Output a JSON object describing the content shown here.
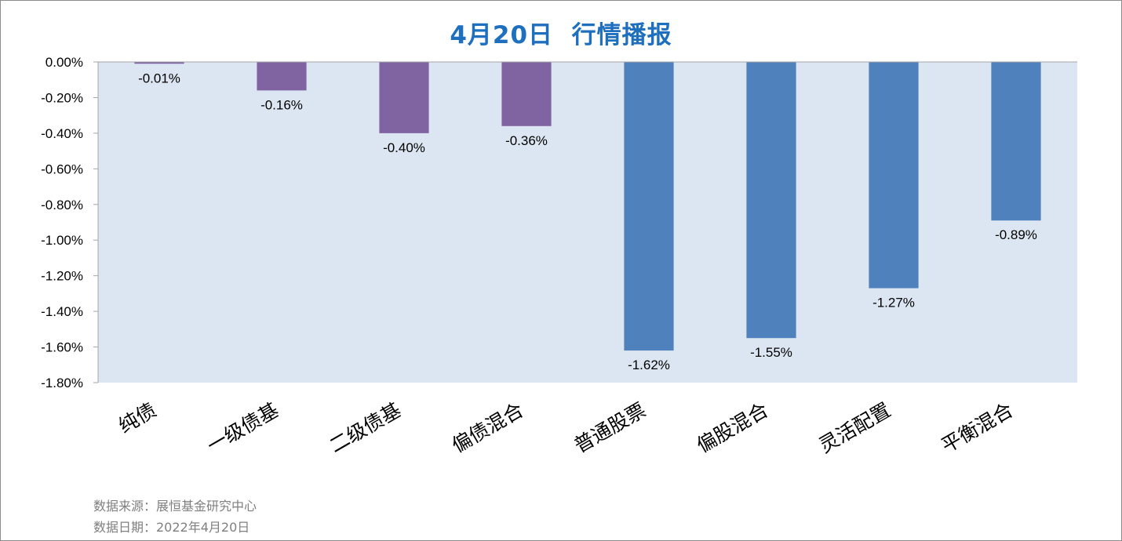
{
  "chart_data": {
    "type": "bar",
    "title": "4月20日  行情播报",
    "categories": [
      "纯债",
      "一级债基",
      "二级债基",
      "偏债混合",
      "普通股票",
      "偏股混合",
      "灵活配置",
      "平衡混合"
    ],
    "values": [
      -0.01,
      -0.16,
      -0.4,
      -0.36,
      -1.62,
      -1.55,
      -1.27,
      -0.89
    ],
    "data_labels": [
      "-0.01%",
      "-0.16%",
      "-0.40%",
      "-0.36%",
      "-1.62%",
      "-1.55%",
      "-1.27%",
      "-0.89%"
    ],
    "bar_colors": [
      "#8064a2",
      "#8064a2",
      "#8064a2",
      "#8064a2",
      "#4f81bd",
      "#4f81bd",
      "#4f81bd",
      "#4f81bd"
    ],
    "ylim": [
      -1.8,
      0
    ],
    "yticks": [
      0,
      -0.2,
      -0.4,
      -0.6,
      -0.8,
      -1.0,
      -1.2,
      -1.4,
      -1.6,
      -1.8
    ],
    "ytick_labels": [
      "0.00%",
      "-0.20%",
      "-0.40%",
      "-0.60%",
      "-0.80%",
      "-1.00%",
      "-1.20%",
      "-1.40%",
      "-1.60%",
      "-1.80%"
    ],
    "plot_background": "#dce6f2",
    "grid": false,
    "legend": "none"
  },
  "footer": {
    "source": "数据来源：展恒基金研究中心",
    "date": "数据日期：2022年4月20日"
  },
  "colors": {
    "title": "#1f6fbf",
    "footer_text": "#7f7f7f"
  }
}
